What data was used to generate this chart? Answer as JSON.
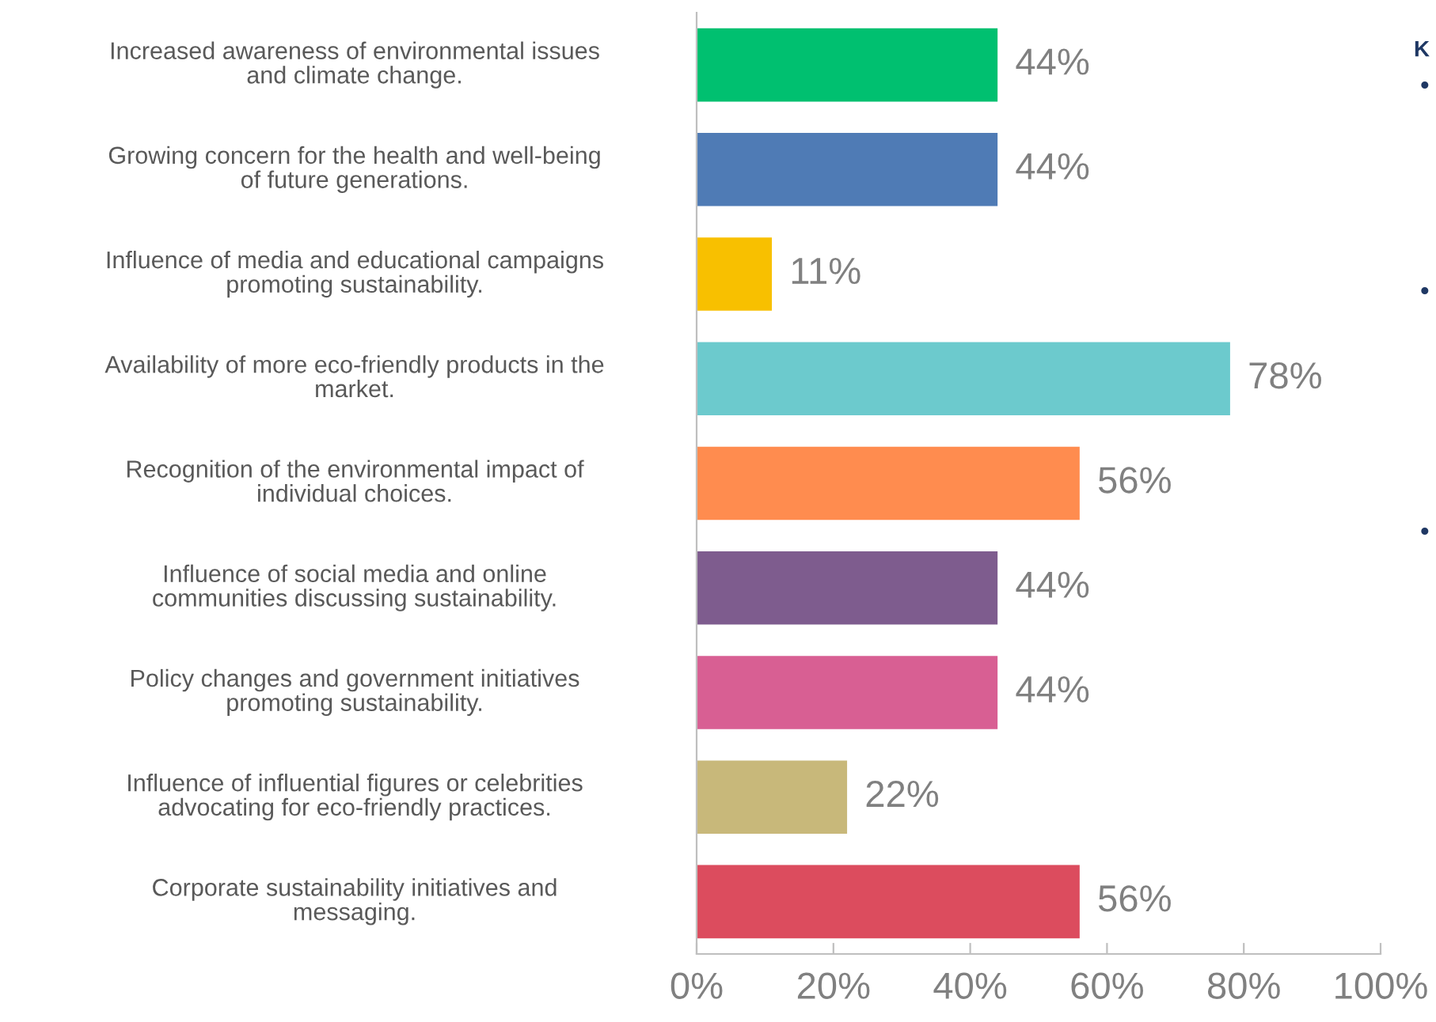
{
  "chart_data": {
    "type": "bar",
    "orientation": "horizontal",
    "categories": [
      "Increased awareness of environmental issues\nand climate change.",
      "Growing concern for the health and well-being\nof future generations.",
      "Influence of media and educational campaigns\npromoting sustainability.",
      "Availability of more eco-friendly products in the\nmarket.",
      "Recognition of the environmental impact of\nindividual choices.",
      "Influence of social media and online\ncommunities discussing sustainability.",
      "Policy changes and government initiatives\npromoting sustainability.",
      "Influence of influential figures or celebrities\nadvocating for eco-friendly practices.",
      "Corporate sustainability initiatives and\nmessaging."
    ],
    "values": [
      44,
      44,
      11,
      78,
      56,
      44,
      44,
      22,
      56
    ],
    "colors": [
      "#00c070",
      "#4f7bb5",
      "#f8c000",
      "#6ccacd",
      "#ff8c4f",
      "#7e5c8e",
      "#d85f93",
      "#c8b87a",
      "#dc4c5e"
    ],
    "value_labels": [
      "44%",
      "44%",
      "11%",
      "78%",
      "56%",
      "44%",
      "44%",
      "22%",
      "56%"
    ],
    "xlim": [
      0,
      100
    ],
    "xticks": [
      {
        "value": 0,
        "label": "0%"
      },
      {
        "value": 20,
        "label": "20%"
      },
      {
        "value": 40,
        "label": "40%"
      },
      {
        "value": 60,
        "label": "60%"
      },
      {
        "value": 80,
        "label": "80%"
      },
      {
        "value": 100,
        "label": "100%"
      }
    ],
    "grid": false,
    "legend": false,
    "annotations": [
      "K",
      "•",
      "•",
      "•"
    ]
  }
}
